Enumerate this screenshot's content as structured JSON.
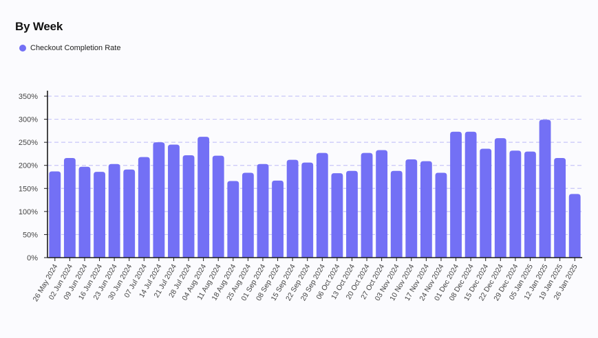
{
  "colors": {
    "bar": "#7370f5",
    "grid": "#c8c6f8",
    "axis": "#1a1a1a",
    "tick_text": "#444444"
  },
  "chart_data": {
    "type": "bar",
    "title": "By Week",
    "legend": "Checkout Completion Rate",
    "legend_position": "top-left",
    "grid": true,
    "ylim": [
      0,
      350
    ],
    "y_ticks": [
      0,
      50,
      100,
      150,
      200,
      250,
      300,
      350
    ],
    "y_tick_labels": [
      "0%",
      "50%",
      "100%",
      "150%",
      "200%",
      "250%",
      "300%",
      "350%"
    ],
    "categories": [
      "26 May 2024",
      "02 Jun 2024",
      "09 Jun 2024",
      "16 Jun 2024",
      "23 Jun 2024",
      "30 Jun 2024",
      "07 Jul 2024",
      "14 Jul 2024",
      "21 Jul 2024",
      "28 Jul 2024",
      "04 Aug 2024",
      "11 Aug 2024",
      "18 Aug 2024",
      "25 Aug 2024",
      "01 Sep 2024",
      "08 Sep 2024",
      "15 Sep 2024",
      "22 Sep 2024",
      "29 Sep 2024",
      "06 Oct 2024",
      "13 Oct 2024",
      "20 Oct 2024",
      "27 Oct 2024",
      "03 Nov 2024",
      "10 Nov 2024",
      "17 Nov 2024",
      "24 Nov 2024",
      "01 Dec 2024",
      "08 Dec 2024",
      "15 Dec 2024",
      "22 Dec 2024",
      "29 Dec 2024",
      "05 Jan 2025",
      "12 Jan 2025",
      "19 Jan 2025",
      "26 Jan 2025"
    ],
    "series": [
      {
        "name": "Checkout Completion Rate",
        "values": [
          187,
          216,
          197,
          186,
          203,
          191,
          218,
          250,
          245,
          222,
          262,
          221,
          166,
          184,
          203,
          167,
          212,
          206,
          227,
          183,
          188,
          227,
          233,
          188,
          213,
          209,
          184,
          273,
          273,
          236,
          259,
          232,
          230,
          299,
          216,
          138
        ]
      }
    ]
  }
}
